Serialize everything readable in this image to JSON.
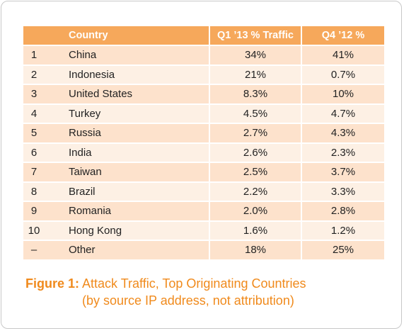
{
  "table": {
    "headers": {
      "rank": "",
      "country": "Country",
      "q1": "Q1 ’13 % Traffic",
      "q4": "Q4 ’12 %"
    },
    "rows": [
      {
        "rank": "1",
        "country": "China",
        "q1": "34%",
        "q4": "41%"
      },
      {
        "rank": "2",
        "country": "Indonesia",
        "q1": "21%",
        "q4": "0.7%"
      },
      {
        "rank": "3",
        "country": "United States",
        "q1": "8.3%",
        "q4": "10%"
      },
      {
        "rank": "4",
        "country": "Turkey",
        "q1": "4.5%",
        "q4": "4.7%"
      },
      {
        "rank": "5",
        "country": "Russia",
        "q1": "2.7%",
        "q4": "4.3%"
      },
      {
        "rank": "6",
        "country": "India",
        "q1": "2.6%",
        "q4": "2.3%"
      },
      {
        "rank": "7",
        "country": "Taiwan",
        "q1": "2.5%",
        "q4": "3.7%"
      },
      {
        "rank": "8",
        "country": "Brazil",
        "q1": "2.2%",
        "q4": "3.3%"
      },
      {
        "rank": "9",
        "country": "Romania",
        "q1": "2.0%",
        "q4": "2.8%"
      },
      {
        "rank": "10",
        "country": "Hong Kong",
        "q1": "1.6%",
        "q4": "1.2%"
      },
      {
        "rank": "–",
        "country": "Other",
        "q1": "18%",
        "q4": "25%"
      }
    ]
  },
  "caption": {
    "label": "Figure 1:",
    "line1": "Attack Traffic, Top Originating Countries",
    "line2": "(by source IP address, not attribution)"
  },
  "colors": {
    "header_bg": "#f6a85b",
    "row_bg": "#fde2cc",
    "row_alt_bg": "#fdf0e4",
    "caption": "#f08a1c"
  }
}
